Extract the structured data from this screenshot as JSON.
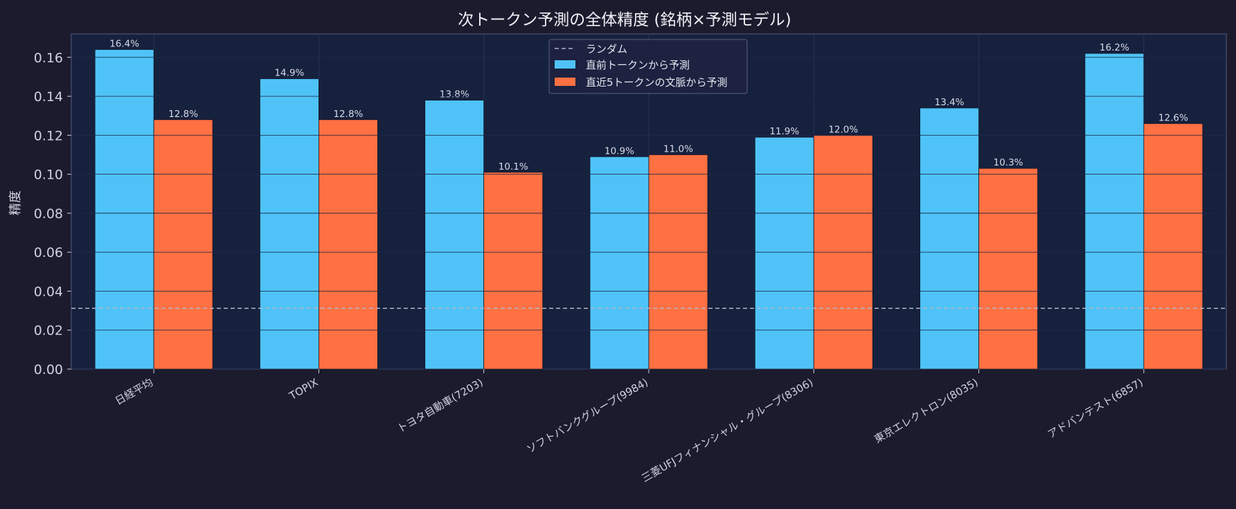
{
  "chart_data": {
    "type": "bar",
    "title": "次トークン予測の全体精度 (銘柄×予測モデル)",
    "xlabel": "",
    "ylabel": "精度",
    "ylim": [
      0,
      0.172
    ],
    "yticks": [
      0.0,
      0.02,
      0.04,
      0.06,
      0.08,
      0.1,
      0.12,
      0.14,
      0.16
    ],
    "ytick_labels": [
      "0.00",
      "0.02",
      "0.04",
      "0.06",
      "0.08",
      "0.10",
      "0.12",
      "0.14",
      "0.16"
    ],
    "grid": true,
    "legend_position": "top-center",
    "categories": [
      "日経平均",
      "TOPIX",
      "トヨタ自動車(7203)",
      "ソフトバンクグループ(9984)",
      "三菱UFJフィナンシャル・グループ(8306)",
      "東京エレクトロン(8035)",
      "アドバンテスト(6857)"
    ],
    "series": [
      {
        "name": "直前トークンから予測",
        "color": "#4fc3f7",
        "values": [
          0.164,
          0.149,
          0.138,
          0.109,
          0.119,
          0.134,
          0.162
        ],
        "labels": [
          "16.4%",
          "14.9%",
          "13.8%",
          "10.9%",
          "11.9%",
          "13.4%",
          "16.2%"
        ]
      },
      {
        "name": "直近5トークンの文脈から予測",
        "color": "#ff7043",
        "values": [
          0.128,
          0.128,
          0.101,
          0.11,
          0.12,
          0.103,
          0.126
        ],
        "labels": [
          "12.8%",
          "12.8%",
          "10.1%",
          "11.0%",
          "12.0%",
          "10.3%",
          "12.6%"
        ]
      }
    ],
    "reference_line": {
      "name": "ランダム",
      "value": 0.0312,
      "style": "dashed",
      "color": "#b0b4c8"
    }
  },
  "colors": {
    "background": "#1c1b2e",
    "plot_background": "#16213e",
    "text": "#e6e6ef",
    "tick_text": "#cfd2e0"
  }
}
